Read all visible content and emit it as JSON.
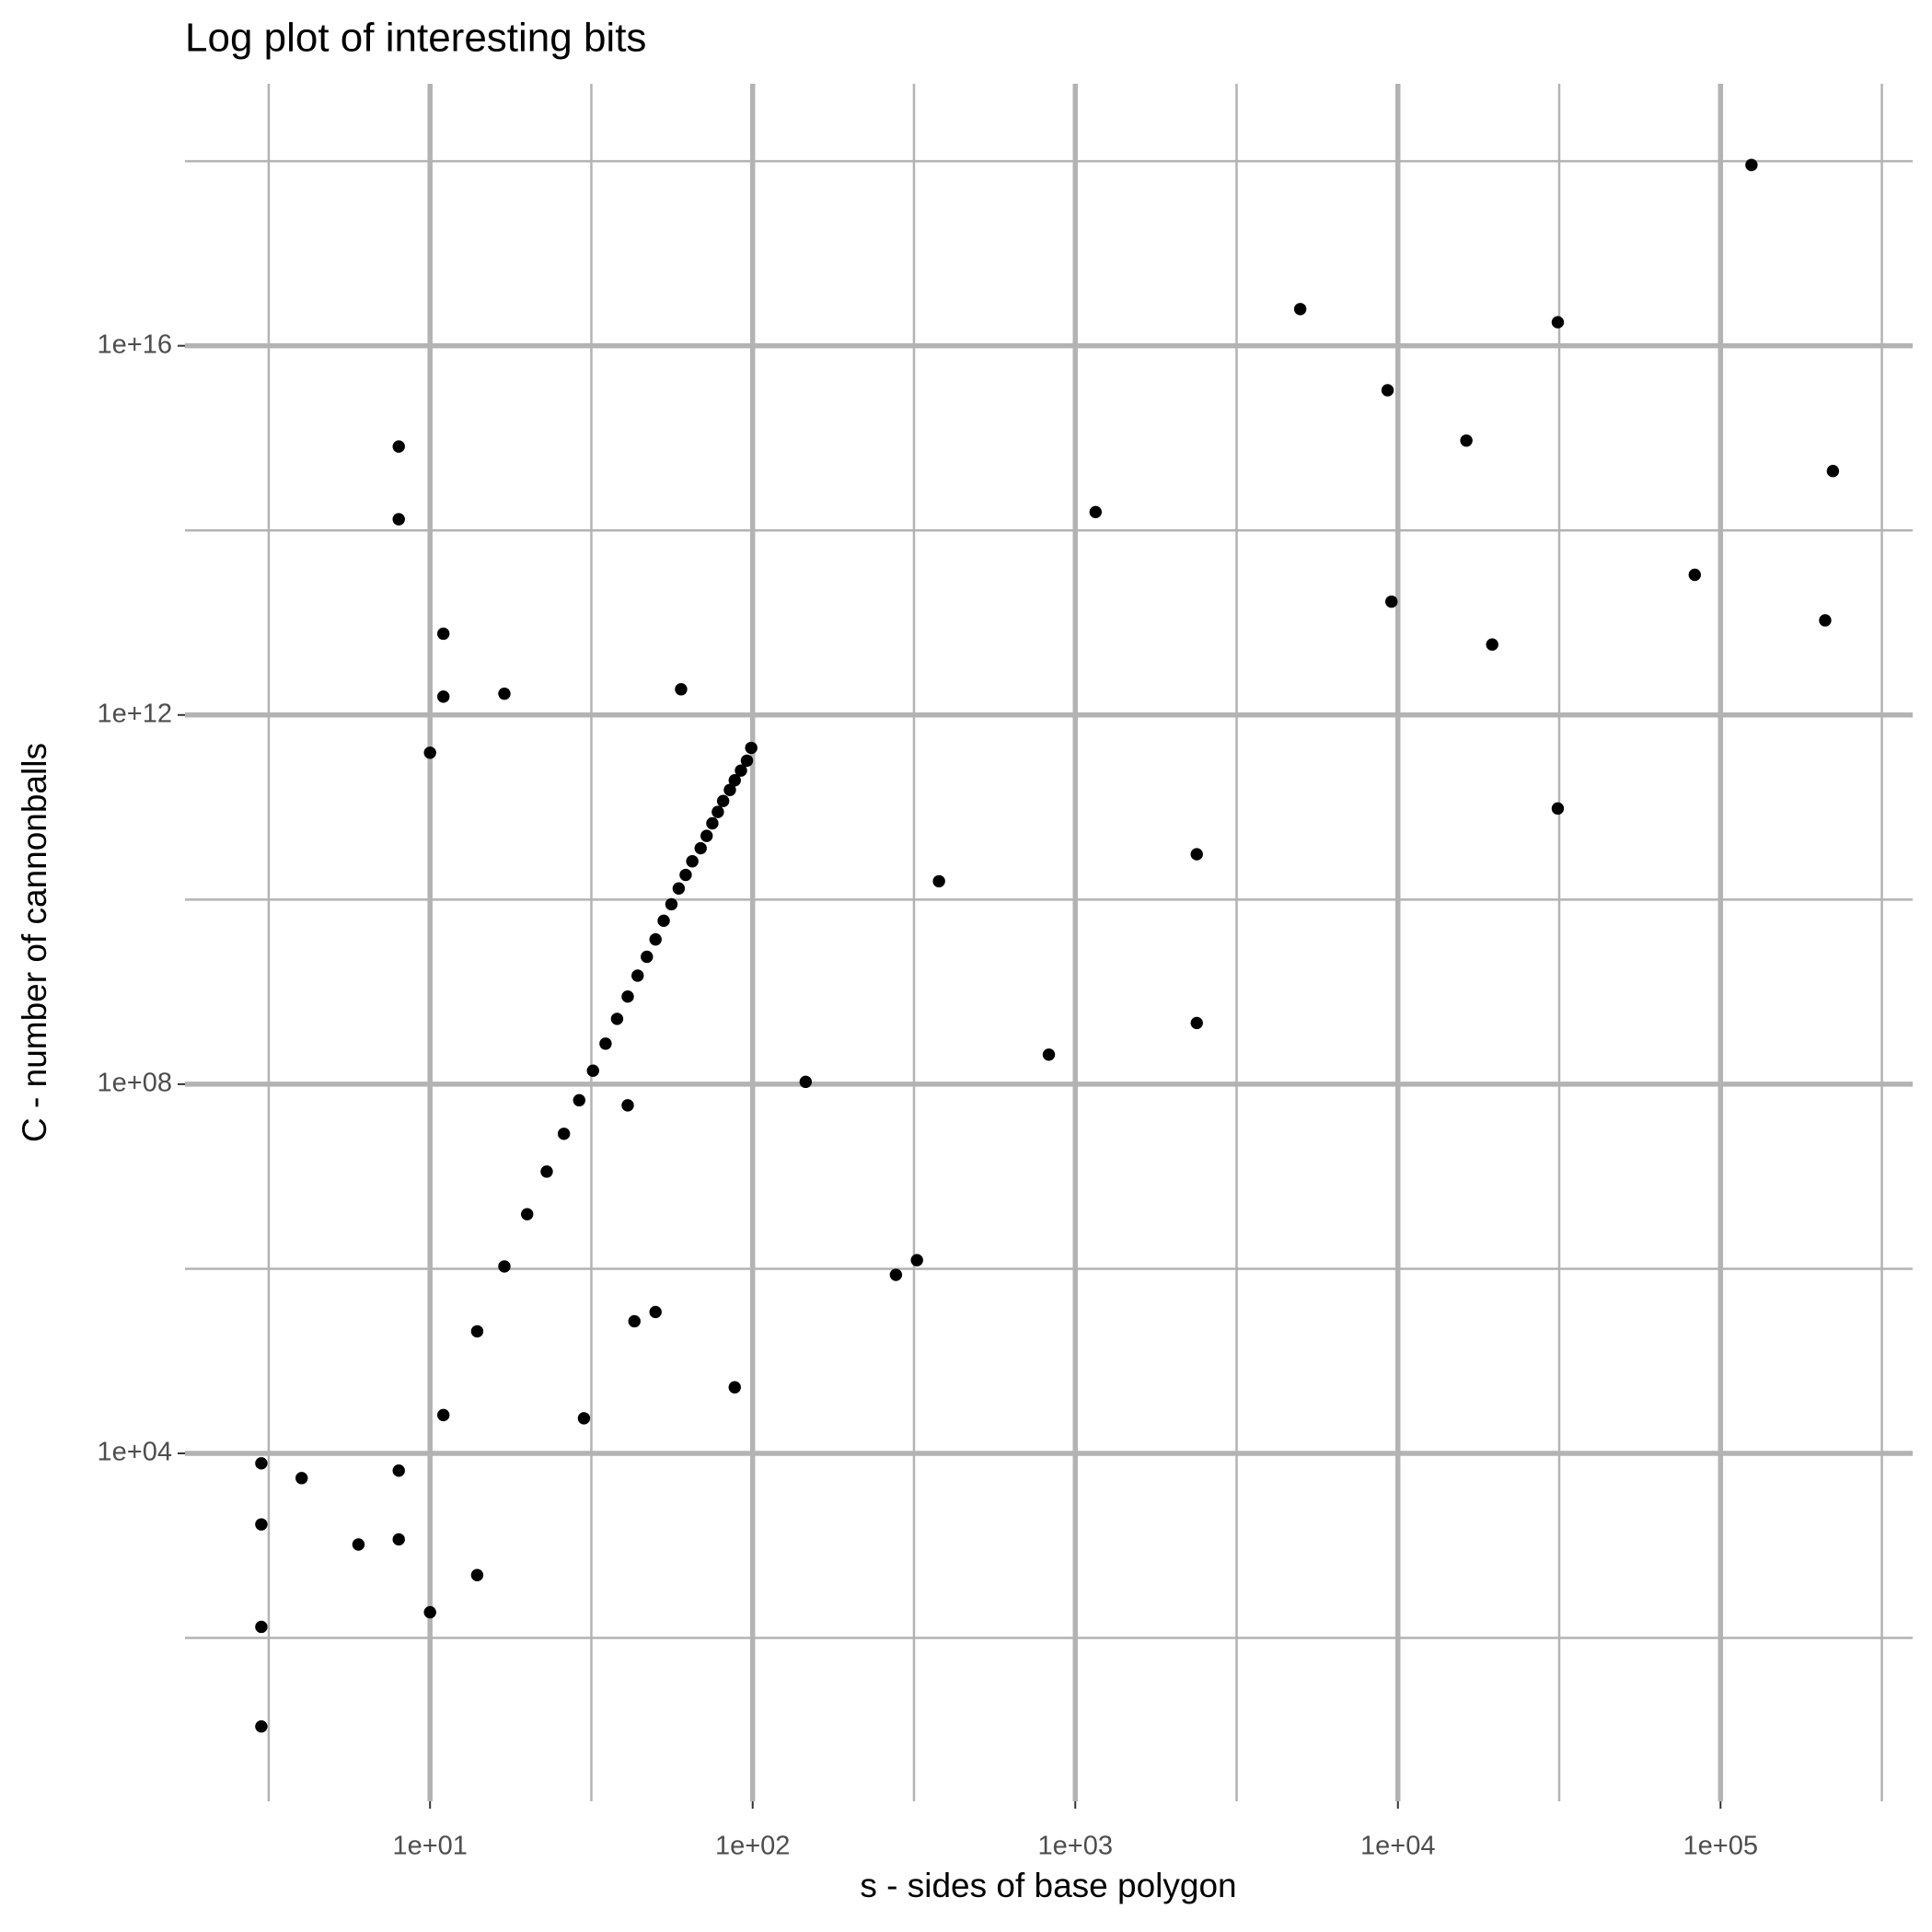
{
  "chart_data": {
    "type": "scatter",
    "title": "Log plot of interesting bits",
    "x_label": "s - sides of base polygon",
    "y_label": "C - number of cannonballs",
    "log_x": true,
    "log_y": true,
    "grid": true,
    "color": "#000000",
    "xlim": [
      1.74,
      394000
    ],
    "ylim": [
      1.7,
      6.9e+18
    ],
    "xticks": [
      {
        "value": 10,
        "label": "1e+01"
      },
      {
        "value": 100,
        "label": "1e+02"
      },
      {
        "value": 1000,
        "label": "1e+03"
      },
      {
        "value": 10000,
        "label": "1e+04"
      },
      {
        "value": 100000,
        "label": "1e+05"
      }
    ],
    "xminorticks": [
      3.1623,
      31.623,
      316.23,
      3162.3,
      31623,
      316230
    ],
    "yticks": [
      {
        "value": 10000.0,
        "label": "1e+04"
      },
      {
        "value": 100000000.0,
        "label": "1e+08"
      },
      {
        "value": 1000000000000.0,
        "label": "1e+12"
      },
      {
        "value": 1e+16,
        "label": "1e+16"
      }
    ],
    "yminorticks": [
      100,
      1000000.0,
      10000000000.0,
      100000000000000.0,
      1e+18
    ],
    "x": [
      3,
      3,
      3,
      3,
      4,
      6,
      8,
      8,
      8,
      8,
      10,
      10,
      11,
      11,
      11,
      14,
      14,
      17,
      17,
      20,
      23,
      26,
      29,
      30,
      32,
      35,
      38,
      41,
      41,
      43,
      44,
      47,
      50,
      50,
      53,
      56,
      59,
      60,
      62,
      65,
      69,
      72,
      75,
      78,
      81,
      85,
      88,
      88,
      92,
      96,
      99,
      146,
      278,
      323,
      378,
      828,
      1156,
      2380,
      2380,
      4980,
      9290,
      9550,
      16300,
      19600,
      31300,
      31300,
      83200,
      124700,
      211000,
      223000
    ],
    "values": [
      7800,
      1700,
      132,
      11,
      5400,
      1030,
      6500,
      1170,
      810000000000000.0,
      132000000000000.0,
      190,
      390000000000.0,
      7600000000000.0,
      1580000000000.0,
      26000,
      210000,
      480,
      1060000,
      1700000000000.0,
      3900000,
      11300000,
      29000000,
      67000000,
      24000,
      140000000,
      275000000,
      510000000,
      59000000,
      890000000,
      270000,
      1500000000.0,
      2400000000.0,
      340000,
      3700000000.0,
      5900000000.0,
      8900000000.0,
      13200000000.0,
      1900000000000.0,
      18500000000.0,
      26000000000.0,
      36000000000.0,
      49000000000.0,
      67000000000.0,
      89000000000.0,
      117000000000.0,
      154000000000.0,
      196000000000.0,
      52000,
      250000000000.0,
      320000000000.0,
      440000000000.0,
      106000000,
      860000,
      1240000,
      15800000000.0,
      209000000,
      158000000000000.0,
      31000000000.0,
      460000000,
      2.5e+16,
      3300000000000000.0,
      16900000000000.0,
      940000000000000.0,
      5800000000000.0,
      1.8e+16,
      97000000000.0,
      33000000000000.0,
      9.1e+17,
      10600000000000.0,
      440000000000000.0
    ]
  }
}
